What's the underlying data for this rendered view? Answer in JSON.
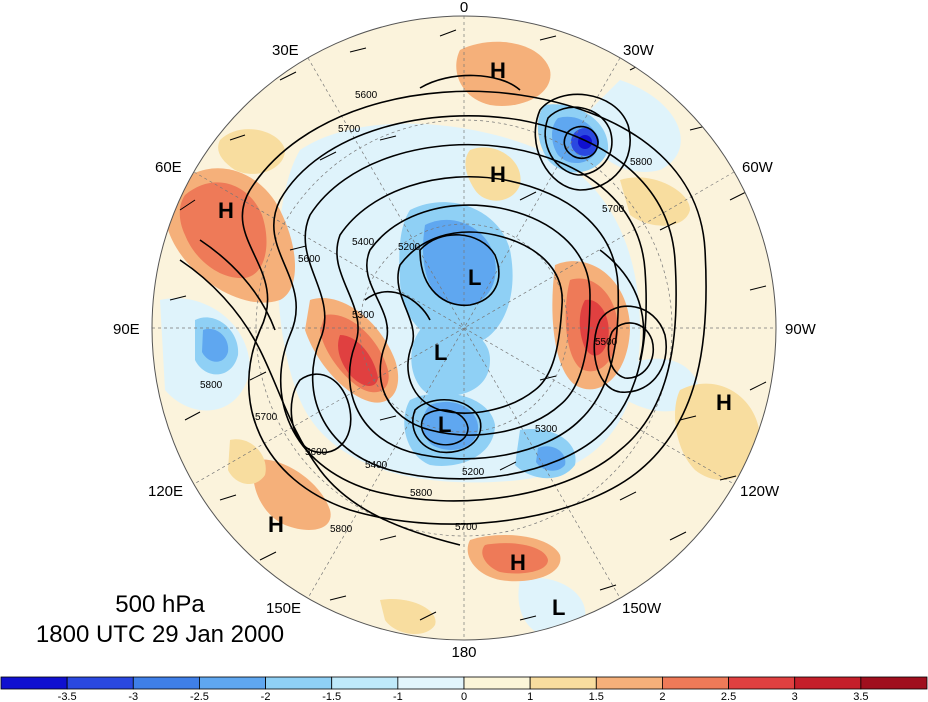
{
  "map": {
    "longitude_labels": [
      {
        "text": "0",
        "key": "lon_0"
      },
      {
        "text": "30W",
        "key": "lon_30w"
      },
      {
        "text": "60W",
        "key": "lon_60w"
      },
      {
        "text": "90W",
        "key": "lon_90w"
      },
      {
        "text": "120W",
        "key": "lon_120w"
      },
      {
        "text": "150W",
        "key": "lon_150w"
      },
      {
        "text": "180",
        "key": "lon_180"
      },
      {
        "text": "150E",
        "key": "lon_150e"
      },
      {
        "text": "120E",
        "key": "lon_120e"
      },
      {
        "text": "90E",
        "key": "lon_90e"
      },
      {
        "text": "60E",
        "key": "lon_60e"
      },
      {
        "text": "30E",
        "key": "lon_30e"
      }
    ],
    "pressure_centers": [
      {
        "label": "H"
      },
      {
        "label": "H"
      },
      {
        "label": "H"
      },
      {
        "label": "H"
      },
      {
        "label": "H"
      },
      {
        "label": "H"
      },
      {
        "label": "L"
      },
      {
        "label": "L"
      },
      {
        "label": "L"
      },
      {
        "label": "L"
      }
    ],
    "contour_labels": [
      "5600",
      "5700",
      "5400",
      "5200",
      "5300",
      "5800",
      "5700",
      "5600",
      "5800",
      "5700",
      "5800",
      "5600",
      "5500",
      "5700",
      "5200",
      "5800",
      "5300",
      "5400"
    ]
  },
  "title": {
    "level": "500 hPa",
    "datetime": "1800 UTC 29 Jan 2000"
  },
  "colorbar": {
    "ticks": [
      "-3.5",
      "-3",
      "-2.5",
      "-2",
      "-1.5",
      "-1",
      "0",
      "1",
      "1.5",
      "2",
      "2.5",
      "3",
      "3.5"
    ],
    "colors": [
      "#1010d0",
      "#2a48e0",
      "#3f7fe8",
      "#5fa7f0",
      "#8fd0f5",
      "#bfe9fa",
      "#e2f5fc",
      "#fbf5d8",
      "#f8dd9f",
      "#f5b07a",
      "#ee7a58",
      "#e04040",
      "#c41f2a",
      "#a00f1e"
    ]
  }
}
